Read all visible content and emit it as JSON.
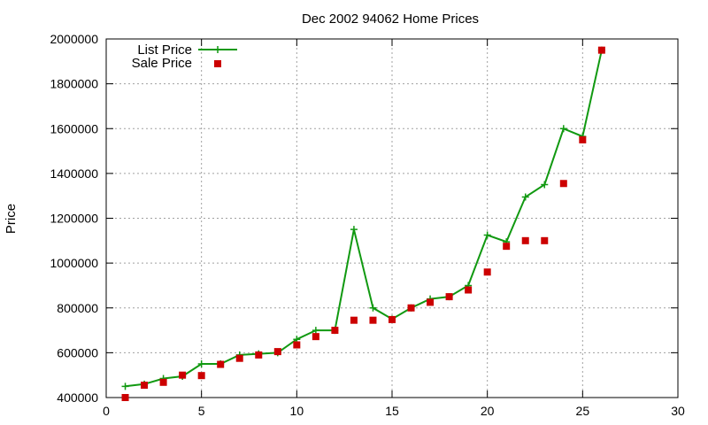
{
  "chart_data": {
    "type": "line",
    "title": "Dec 2002 94062 Home Prices",
    "xlabel": "",
    "ylabel": "Price",
    "xlim": [
      0,
      30
    ],
    "ylim": [
      400000,
      2000000
    ],
    "x_ticks": [
      0,
      5,
      10,
      15,
      20,
      25,
      30
    ],
    "y_ticks": [
      400000,
      600000,
      800000,
      1000000,
      1200000,
      1400000,
      1600000,
      1800000,
      2000000
    ],
    "grid": true,
    "legend_position": "top-left",
    "series": [
      {
        "name": "List Price",
        "style": "line-plus",
        "color": "#119911",
        "x": [
          1,
          2,
          3,
          4,
          5,
          6,
          7,
          8,
          9,
          10,
          11,
          12,
          13,
          14,
          15,
          16,
          17,
          18,
          19,
          20,
          21,
          22,
          23,
          24,
          25,
          26
        ],
        "y": [
          450000,
          460000,
          485000,
          495000,
          550000,
          550000,
          590000,
          595000,
          600000,
          660000,
          700000,
          700000,
          1150000,
          800000,
          750000,
          800000,
          840000,
          850000,
          900000,
          1125000,
          1095000,
          1295000,
          1350000,
          1600000,
          1565000,
          1950000
        ]
      },
      {
        "name": "Sale Price",
        "style": "square",
        "color": "#cc0000",
        "x": [
          1,
          2,
          3,
          4,
          5,
          6,
          7,
          8,
          9,
          10,
          11,
          12,
          13,
          14,
          15,
          16,
          17,
          18,
          19,
          20,
          21,
          22,
          23,
          24,
          25,
          26
        ],
        "y": [
          400000,
          455000,
          468000,
          500000,
          498000,
          548000,
          575000,
          590000,
          605000,
          635000,
          672000,
          700000,
          745000,
          745000,
          748000,
          800000,
          825000,
          850000,
          880000,
          960000,
          1075000,
          1100000,
          1100000,
          1355000,
          1550000,
          1950000
        ]
      }
    ]
  }
}
